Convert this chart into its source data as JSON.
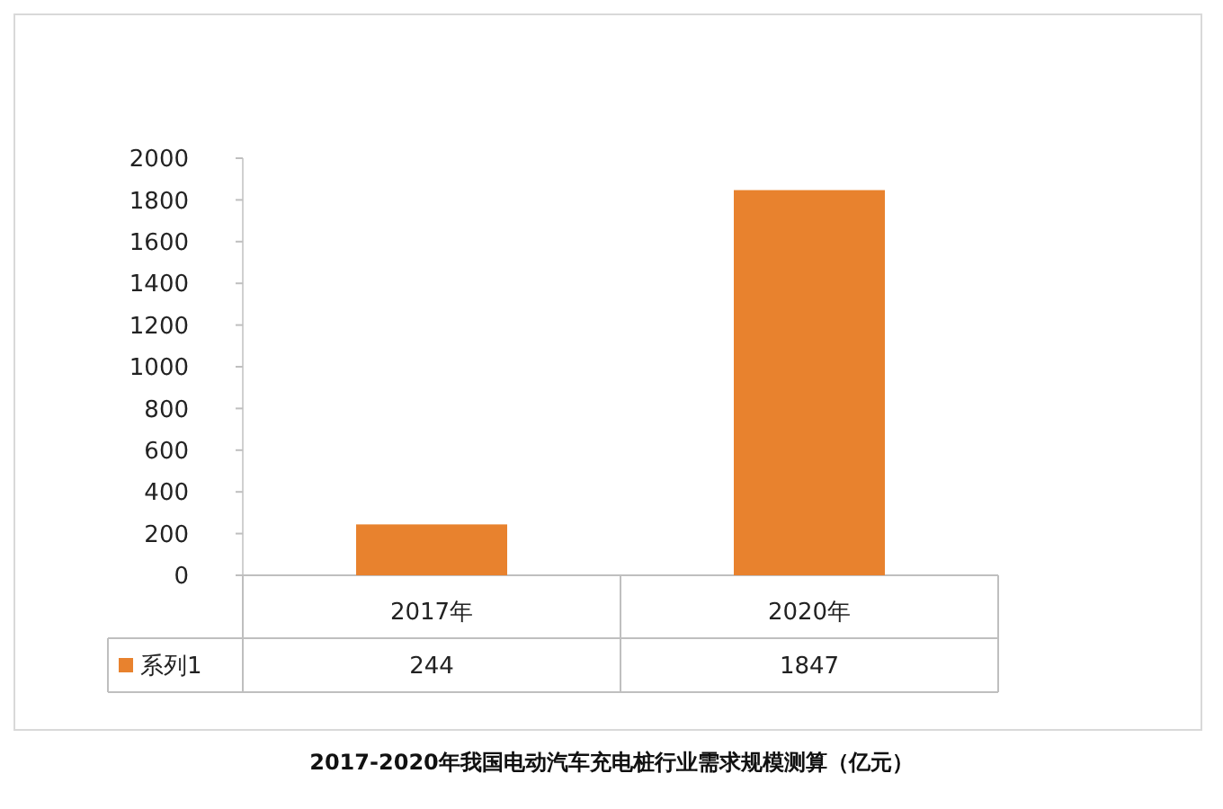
{
  "chart_data": {
    "type": "bar",
    "title": "2017-2020年我国电动汽车充电桩行业需求规模测算（亿元）",
    "categories": [
      "2017年",
      "2020年"
    ],
    "series": [
      {
        "name": "系列1",
        "color": "#e8822e",
        "values": [
          244,
          1847
        ]
      }
    ],
    "ylim": [
      0,
      2000
    ],
    "yticks": [
      0,
      200,
      400,
      600,
      800,
      1000,
      1200,
      1400,
      1600,
      1800,
      2000
    ],
    "data_labels": true,
    "legend": "bottom",
    "grid": false
  }
}
